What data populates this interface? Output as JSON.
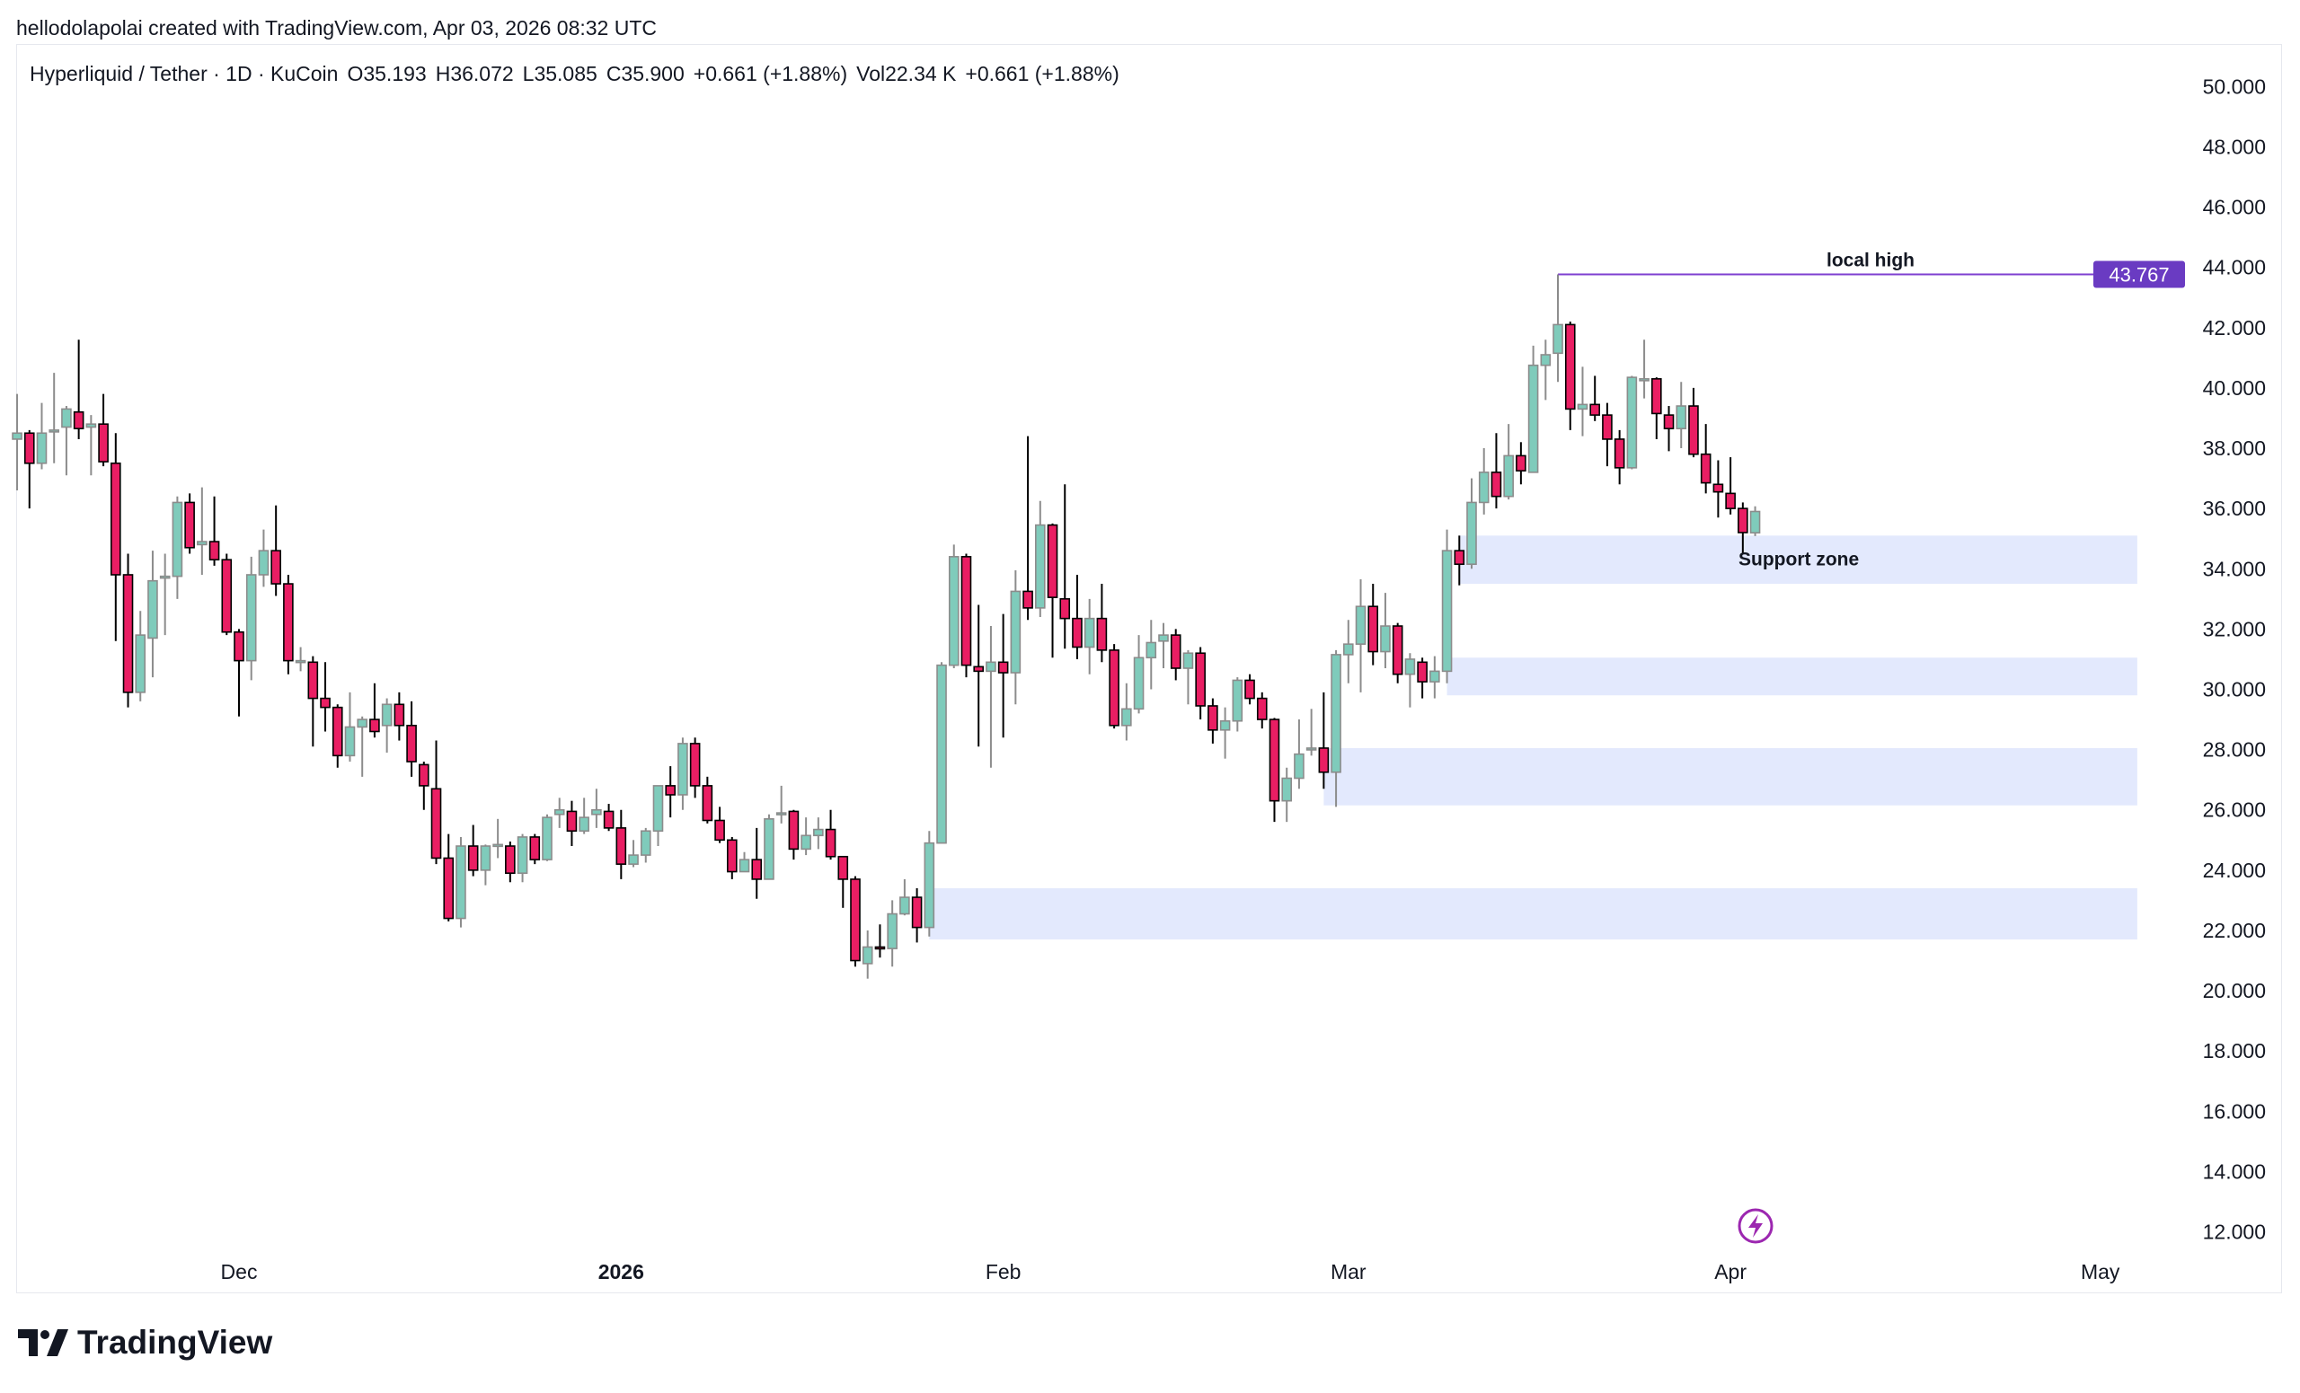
{
  "credit": "hellodolapolai created with TradingView.com, Apr 03, 2026 08:32 UTC",
  "legend": {
    "symbol": "Hyperliquid / Tether · 1D · KuCoin",
    "open": "O35.193",
    "high": "H36.072",
    "low": "L35.085",
    "close": "C35.900",
    "change": "+0.661 (+1.88%)",
    "volume": "Vol22.34 K",
    "volume_change": "+0.661 (+1.88%)"
  },
  "brand": "TradingView",
  "colors": {
    "up_body": "#7fcbbb",
    "up_border": "#8c8c8c",
    "down_body": "#e91e63",
    "down_border": "#000000",
    "zone": "#e3e9fd",
    "local_high": "#7e3fd0",
    "price_label_bg": "#6a3bc2",
    "lightning": "#9c27b0"
  },
  "chart_data": {
    "type": "candlestick",
    "columns": [
      "date",
      "open",
      "high",
      "low",
      "close"
    ],
    "ylim": [
      11,
      51
    ],
    "y_ticks": [
      "12.000",
      "14.000",
      "16.000",
      "18.000",
      "20.000",
      "22.000",
      "24.000",
      "26.000",
      "28.000",
      "30.000",
      "32.000",
      "34.000",
      "36.000",
      "38.000",
      "40.000",
      "42.000",
      "44.000",
      "46.000",
      "48.000",
      "50.000"
    ],
    "x_ticks": [
      {
        "label": "Dec",
        "date": "2025-12-01",
        "bold": false
      },
      {
        "label": "2026",
        "date": "2026-01-01",
        "bold": true
      },
      {
        "label": "Feb",
        "date": "2026-02-01",
        "bold": false
      },
      {
        "label": "Mar",
        "date": "2026-03-01",
        "bold": false
      },
      {
        "label": "Apr",
        "date": "2026-04-01",
        "bold": false
      },
      {
        "label": "May",
        "date": "2026-05-01",
        "bold": false
      }
    ],
    "grid": false,
    "candles": [
      [
        "2025-11-13",
        38.3,
        39.8,
        36.6,
        38.5
      ],
      [
        "2025-11-14",
        38.5,
        38.6,
        36.0,
        37.5
      ],
      [
        "2025-11-15",
        37.5,
        39.5,
        37.3,
        38.5
      ],
      [
        "2025-11-16",
        38.55,
        40.5,
        37.5,
        38.6
      ],
      [
        "2025-11-17",
        38.7,
        39.4,
        37.1,
        39.3
      ],
      [
        "2025-11-18",
        39.2,
        41.6,
        38.3,
        38.65
      ],
      [
        "2025-11-19",
        38.7,
        39.1,
        37.1,
        38.8
      ],
      [
        "2025-11-20",
        38.8,
        39.8,
        37.4,
        37.55
      ],
      [
        "2025-11-21",
        37.5,
        38.5,
        31.6,
        33.8
      ],
      [
        "2025-11-22",
        33.8,
        34.5,
        29.4,
        29.9
      ],
      [
        "2025-11-23",
        29.9,
        32.6,
        29.6,
        31.8
      ],
      [
        "2025-11-24",
        31.7,
        34.6,
        30.4,
        33.6
      ],
      [
        "2025-11-25",
        33.7,
        34.5,
        31.8,
        33.75
      ],
      [
        "2025-11-26",
        33.75,
        36.4,
        33.0,
        36.2
      ],
      [
        "2025-11-27",
        36.2,
        36.5,
        34.5,
        34.7
      ],
      [
        "2025-11-28",
        34.8,
        36.7,
        33.8,
        34.9
      ],
      [
        "2025-11-29",
        34.9,
        36.4,
        34.1,
        34.3
      ],
      [
        "2025-11-30",
        34.3,
        34.5,
        31.8,
        31.9
      ],
      [
        "2025-12-01",
        31.9,
        32.0,
        29.1,
        30.95
      ],
      [
        "2025-12-02",
        30.95,
        34.4,
        30.3,
        33.8
      ],
      [
        "2025-12-03",
        33.8,
        35.3,
        33.4,
        34.6
      ],
      [
        "2025-12-04",
        34.6,
        36.1,
        33.1,
        33.5
      ],
      [
        "2025-12-05",
        33.5,
        33.8,
        30.5,
        30.95
      ],
      [
        "2025-12-06",
        30.95,
        31.4,
        30.6,
        30.95
      ],
      [
        "2025-12-07",
        30.9,
        31.1,
        28.1,
        29.7
      ],
      [
        "2025-12-08",
        29.7,
        30.9,
        28.6,
        29.4
      ],
      [
        "2025-12-09",
        29.4,
        29.5,
        27.4,
        27.8
      ],
      [
        "2025-12-10",
        27.8,
        29.9,
        27.6,
        28.75
      ],
      [
        "2025-12-11",
        28.75,
        29.1,
        27.1,
        29.0
      ],
      [
        "2025-12-12",
        29.0,
        30.2,
        28.4,
        28.6
      ],
      [
        "2025-12-13",
        28.8,
        29.7,
        27.9,
        29.5
      ],
      [
        "2025-12-14",
        29.5,
        29.9,
        28.3,
        28.8
      ],
      [
        "2025-12-15",
        28.8,
        29.6,
        27.1,
        27.6
      ],
      [
        "2025-12-16",
        27.5,
        27.6,
        26.0,
        26.8
      ],
      [
        "2025-12-17",
        26.7,
        28.3,
        24.2,
        24.4
      ],
      [
        "2025-12-18",
        24.4,
        25.2,
        22.3,
        22.4
      ],
      [
        "2025-12-19",
        22.4,
        25.1,
        22.1,
        24.8
      ],
      [
        "2025-12-20",
        24.8,
        25.5,
        23.8,
        24.0
      ],
      [
        "2025-12-21",
        24.0,
        24.85,
        23.5,
        24.8
      ],
      [
        "2025-12-22",
        24.8,
        25.7,
        24.4,
        24.85
      ],
      [
        "2025-12-23",
        24.8,
        24.95,
        23.6,
        23.9
      ],
      [
        "2025-12-24",
        23.9,
        25.2,
        23.6,
        25.1
      ],
      [
        "2025-12-25",
        25.1,
        25.2,
        24.2,
        24.35
      ],
      [
        "2025-12-26",
        24.35,
        25.85,
        24.3,
        25.75
      ],
      [
        "2025-12-27",
        25.85,
        26.4,
        25.4,
        26.0
      ],
      [
        "2025-12-28",
        25.95,
        26.3,
        24.8,
        25.3
      ],
      [
        "2025-12-29",
        25.3,
        26.4,
        25.2,
        25.75
      ],
      [
        "2025-12-30",
        25.85,
        26.7,
        25.4,
        26.0
      ],
      [
        "2025-12-31",
        25.95,
        26.2,
        25.3,
        25.4
      ],
      [
        "2026-01-01",
        25.4,
        26.0,
        23.7,
        24.2
      ],
      [
        "2026-01-02",
        24.2,
        25.0,
        24.1,
        24.5
      ],
      [
        "2026-01-03",
        24.5,
        25.4,
        24.25,
        25.3
      ],
      [
        "2026-01-04",
        25.3,
        26.8,
        24.8,
        26.8
      ],
      [
        "2026-01-05",
        26.8,
        27.45,
        25.75,
        26.5
      ],
      [
        "2026-01-06",
        26.5,
        28.4,
        26.0,
        28.2
      ],
      [
        "2026-01-07",
        28.2,
        28.4,
        26.4,
        26.8
      ],
      [
        "2026-01-08",
        26.8,
        27.1,
        25.55,
        25.65
      ],
      [
        "2026-01-09",
        25.65,
        26.1,
        24.9,
        25.0
      ],
      [
        "2026-01-10",
        25.0,
        25.1,
        23.7,
        23.95
      ],
      [
        "2026-01-11",
        23.95,
        24.6,
        23.95,
        24.35
      ],
      [
        "2026-01-12",
        24.35,
        25.4,
        23.05,
        23.7
      ],
      [
        "2026-01-13",
        23.7,
        25.85,
        23.7,
        25.7
      ],
      [
        "2026-01-14",
        25.85,
        26.8,
        25.55,
        25.9
      ],
      [
        "2026-01-15",
        25.95,
        26.0,
        24.35,
        24.7
      ],
      [
        "2026-01-16",
        24.7,
        25.75,
        24.5,
        25.15
      ],
      [
        "2026-01-17",
        25.15,
        25.75,
        24.7,
        25.35
      ],
      [
        "2026-01-18",
        25.35,
        26.0,
        24.35,
        24.45
      ],
      [
        "2026-01-19",
        24.45,
        24.45,
        22.75,
        23.7
      ],
      [
        "2026-01-20",
        23.7,
        23.8,
        20.8,
        21.0
      ],
      [
        "2026-01-21",
        20.9,
        22.0,
        20.4,
        21.45
      ],
      [
        "2026-01-22",
        21.45,
        22.2,
        21.1,
        21.4
      ],
      [
        "2026-01-23",
        21.4,
        23.0,
        20.8,
        22.55
      ],
      [
        "2026-01-24",
        22.55,
        23.7,
        22.5,
        23.1
      ],
      [
        "2026-01-25",
        23.1,
        23.4,
        21.6,
        22.1
      ],
      [
        "2026-01-26",
        22.1,
        25.3,
        21.8,
        24.9
      ],
      [
        "2026-01-27",
        24.9,
        30.9,
        24.9,
        30.8
      ],
      [
        "2026-01-28",
        30.8,
        34.8,
        30.7,
        34.4
      ],
      [
        "2026-01-29",
        34.4,
        34.5,
        30.4,
        30.8
      ],
      [
        "2026-01-30",
        30.75,
        32.8,
        28.1,
        30.6
      ],
      [
        "2026-01-31",
        30.6,
        32.1,
        27.4,
        30.9
      ],
      [
        "2026-02-01",
        30.9,
        32.5,
        28.4,
        30.55
      ],
      [
        "2026-02-02",
        30.55,
        33.95,
        29.5,
        33.25
      ],
      [
        "2026-02-03",
        33.25,
        38.4,
        32.3,
        32.7
      ],
      [
        "2026-02-04",
        32.7,
        36.25,
        32.4,
        35.45
      ],
      [
        "2026-02-05",
        35.45,
        35.5,
        31.05,
        33.05
      ],
      [
        "2026-02-06",
        33.0,
        36.8,
        31.35,
        32.35
      ],
      [
        "2026-02-07",
        32.35,
        33.8,
        31.0,
        31.4
      ],
      [
        "2026-02-08",
        31.4,
        33.0,
        30.5,
        32.35
      ],
      [
        "2026-02-09",
        32.35,
        33.5,
        30.9,
        31.3
      ],
      [
        "2026-02-10",
        31.3,
        31.5,
        28.7,
        28.8
      ],
      [
        "2026-02-11",
        28.8,
        30.2,
        28.3,
        29.35
      ],
      [
        "2026-02-12",
        29.35,
        31.8,
        29.2,
        31.05
      ],
      [
        "2026-02-13",
        31.05,
        32.3,
        30.0,
        31.55
      ],
      [
        "2026-02-14",
        31.6,
        32.2,
        30.7,
        31.8
      ],
      [
        "2026-02-15",
        31.8,
        32.0,
        30.3,
        30.7
      ],
      [
        "2026-02-16",
        30.7,
        31.3,
        29.5,
        31.2
      ],
      [
        "2026-02-17",
        31.2,
        31.4,
        29.0,
        29.45
      ],
      [
        "2026-02-18",
        29.45,
        29.7,
        28.2,
        28.65
      ],
      [
        "2026-02-19",
        28.65,
        29.4,
        27.7,
        28.95
      ],
      [
        "2026-02-20",
        28.95,
        30.4,
        28.6,
        30.3
      ],
      [
        "2026-02-21",
        30.3,
        30.5,
        29.5,
        29.7
      ],
      [
        "2026-02-22",
        29.7,
        29.9,
        28.7,
        29.0
      ],
      [
        "2026-02-23",
        29.0,
        29.05,
        25.6,
        26.3
      ],
      [
        "2026-02-24",
        26.3,
        27.4,
        25.6,
        27.05
      ],
      [
        "2026-02-25",
        27.05,
        29.0,
        26.7,
        27.85
      ],
      [
        "2026-02-26",
        28.0,
        29.35,
        27.8,
        28.05
      ],
      [
        "2026-02-27",
        28.05,
        29.9,
        26.7,
        27.25
      ],
      [
        "2026-02-28",
        27.25,
        31.3,
        26.1,
        31.15
      ],
      [
        "2026-03-01",
        31.15,
        32.3,
        30.2,
        31.5
      ],
      [
        "2026-03-02",
        31.5,
        33.65,
        29.9,
        32.75
      ],
      [
        "2026-03-03",
        32.75,
        33.5,
        30.8,
        31.25
      ],
      [
        "2026-03-04",
        31.25,
        33.2,
        30.7,
        32.1
      ],
      [
        "2026-03-05",
        32.1,
        32.2,
        30.2,
        30.5
      ],
      [
        "2026-03-06",
        30.5,
        31.2,
        29.4,
        31.0
      ],
      [
        "2026-03-07",
        30.9,
        31.05,
        29.7,
        30.25
      ],
      [
        "2026-03-08",
        30.25,
        31.1,
        29.7,
        30.6
      ],
      [
        "2026-03-09",
        30.6,
        35.3,
        30.2,
        34.6
      ],
      [
        "2026-03-10",
        34.6,
        35.1,
        33.45,
        34.15
      ],
      [
        "2026-03-11",
        34.15,
        37.0,
        34.0,
        36.2
      ],
      [
        "2026-03-12",
        36.2,
        38.0,
        35.8,
        37.2
      ],
      [
        "2026-03-13",
        37.2,
        38.5,
        36.0,
        36.4
      ],
      [
        "2026-03-14",
        36.4,
        38.8,
        36.3,
        37.75
      ],
      [
        "2026-03-15",
        37.75,
        38.2,
        36.8,
        37.25
      ],
      [
        "2026-03-16",
        37.2,
        41.4,
        37.2,
        40.75
      ],
      [
        "2026-03-17",
        40.75,
        41.6,
        39.6,
        41.1
      ],
      [
        "2026-03-18",
        41.15,
        43.767,
        40.2,
        42.1
      ],
      [
        "2026-03-19",
        42.1,
        42.2,
        38.6,
        39.3
      ],
      [
        "2026-03-20",
        39.3,
        40.7,
        38.4,
        39.45
      ],
      [
        "2026-03-21",
        39.45,
        40.4,
        38.9,
        39.1
      ],
      [
        "2026-03-22",
        39.1,
        39.5,
        37.4,
        38.3
      ],
      [
        "2026-03-23",
        38.3,
        38.6,
        36.8,
        37.35
      ],
      [
        "2026-03-24",
        37.35,
        40.4,
        37.3,
        40.35
      ],
      [
        "2026-03-25",
        40.3,
        41.6,
        39.65,
        40.3
      ],
      [
        "2026-03-26",
        40.3,
        40.35,
        38.3,
        39.15
      ],
      [
        "2026-03-27",
        39.1,
        39.4,
        37.9,
        38.65
      ],
      [
        "2026-03-28",
        38.65,
        40.2,
        38.0,
        39.4
      ],
      [
        "2026-03-29",
        39.4,
        40.0,
        37.7,
        37.8
      ],
      [
        "2026-03-30",
        37.8,
        38.8,
        36.5,
        36.85
      ],
      [
        "2026-03-31",
        36.8,
        37.6,
        35.7,
        36.55
      ],
      [
        "2026-04-01",
        36.5,
        37.7,
        35.8,
        36.0
      ],
      [
        "2026-04-02",
        36.0,
        36.2,
        34.5,
        35.2
      ],
      [
        "2026-04-03",
        35.193,
        36.072,
        35.085,
        35.9
      ]
    ],
    "zones": [
      {
        "start": "2026-03-10",
        "end": "2026-05-04",
        "low": 33.5,
        "high": 35.1,
        "label": "Support zone"
      },
      {
        "start": "2026-03-09",
        "end": "2026-05-04",
        "low": 29.8,
        "high": 31.05,
        "label": ""
      },
      {
        "start": "2026-02-27",
        "end": "2026-05-04",
        "low": 26.15,
        "high": 28.05,
        "label": ""
      },
      {
        "start": "2026-01-26",
        "end": "2026-05-04",
        "low": 21.7,
        "high": 23.4,
        "label": ""
      }
    ],
    "local_high": {
      "date": "2026-03-18",
      "price": 43.767,
      "label": "local high",
      "price_label": "43.767"
    }
  }
}
